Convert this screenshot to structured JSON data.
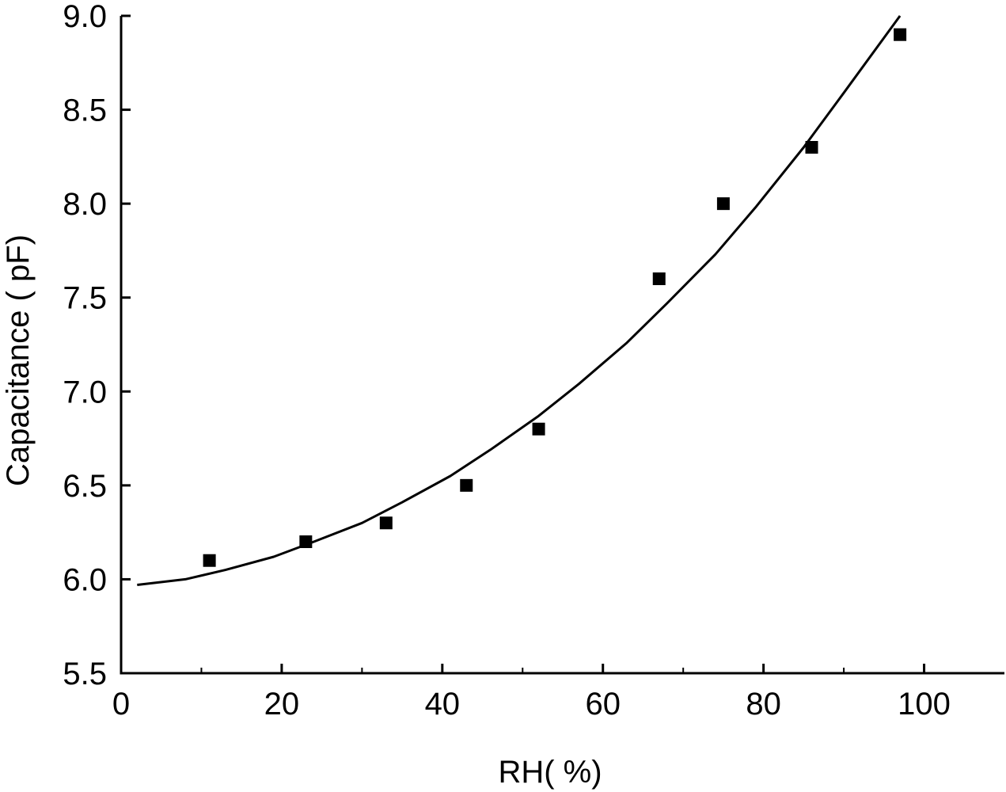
{
  "chart_data": {
    "type": "scatter",
    "xlabel": "RH(   %)",
    "ylabel": "Capacitance (   pF)",
    "xlim": [
      0,
      110
    ],
    "ylim": [
      5.5,
      9.0
    ],
    "x_ticks": [
      0,
      20,
      40,
      60,
      80,
      100
    ],
    "x_tick_labels": [
      "0",
      "20",
      "40",
      "60",
      "80",
      "100"
    ],
    "y_ticks": [
      5.5,
      6.0,
      6.5,
      7.0,
      7.5,
      8.0,
      8.5,
      9.0
    ],
    "y_tick_labels": [
      "5.5",
      "6.0",
      "6.5",
      "7.0",
      "7.5",
      "8.0",
      "8.5",
      "9.0"
    ],
    "grid": false,
    "series": [
      {
        "kind": "points",
        "marker": "square",
        "color": "#000000",
        "x": [
          11,
          23,
          33,
          43,
          52,
          67,
          75,
          86,
          97
        ],
        "y": [
          6.1,
          6.2,
          6.3,
          6.5,
          6.8,
          7.6,
          8.0,
          8.3,
          8.9
        ]
      },
      {
        "kind": "fit-line",
        "color": "#000000",
        "x": [
          2,
          8,
          13,
          19,
          24,
          30,
          35,
          41,
          46,
          52,
          57,
          63,
          68,
          74,
          79,
          85,
          90,
          97
        ],
        "y": [
          5.97,
          6.0,
          6.05,
          6.12,
          6.2,
          6.3,
          6.41,
          6.55,
          6.69,
          6.87,
          7.04,
          7.26,
          7.47,
          7.73,
          7.98,
          8.3,
          8.59,
          9.0
        ]
      }
    ]
  }
}
